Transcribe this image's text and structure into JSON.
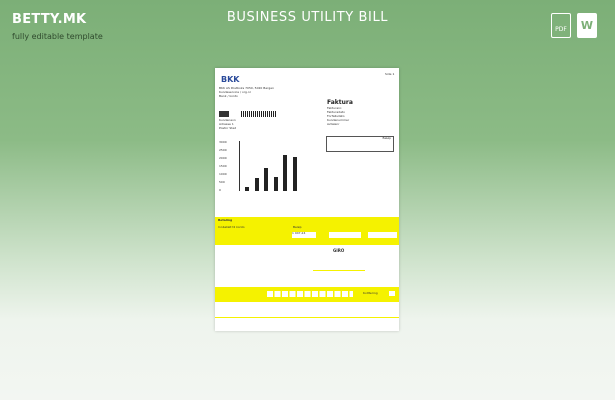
{
  "header": {
    "brand": "BETTY.MK",
    "tagline": "fully editable template",
    "title": "BUSINESS UTILITY BILL",
    "pdf_icon_label": "PDF",
    "word_icon_label": "W"
  },
  "document": {
    "logo": "BKK",
    "page": "Side 1",
    "sender": [
      "BKK AS Postboks 7050, 5020 Bergen",
      "Kundeservice / org.nr",
      "Bank / konto"
    ],
    "recipient": [
      "Kundenavn",
      "Adresse 1",
      "Postnr Sted"
    ],
    "invoice_title": "Faktura",
    "invoice_fields": [
      "Fakturanr.",
      "Fakturadato",
      "Forfallsdato",
      "Kundenummer",
      "Avtalenr"
    ],
    "totals_header": "Beløp",
    "chart_axis": [
      "3000",
      "2500",
      "2000",
      "1500",
      "1000",
      "500",
      "0"
    ],
    "chart_values": [
      250,
      800,
      1450,
      850,
      2250,
      2100
    ],
    "payment_title": "Betaling",
    "payment_label": "Innbetalt til konto",
    "amount_field_label": "Beløp",
    "amount_value": "1 047,24",
    "giro_label": "GIRO",
    "receipt_label": "Kvittering",
    "yellow_color": "#f5f200"
  }
}
